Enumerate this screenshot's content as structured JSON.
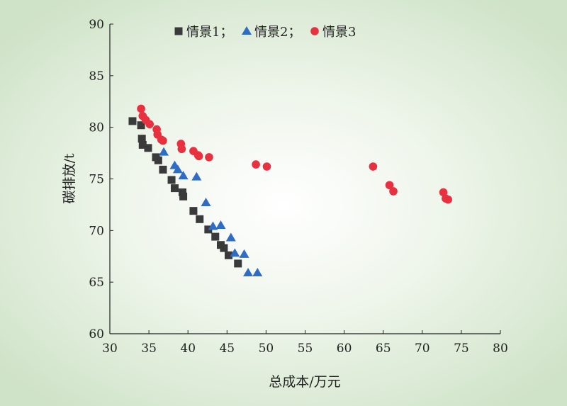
{
  "chart_data": {
    "type": "scatter",
    "title": "",
    "xlabel": "总成本/万元",
    "ylabel": "碳排放/t",
    "xlim": [
      30,
      80
    ],
    "ylim": [
      60,
      90
    ],
    "xticks": [
      30,
      35,
      40,
      45,
      50,
      55,
      60,
      65,
      70,
      75,
      80
    ],
    "yticks": [
      60,
      65,
      70,
      75,
      80,
      85,
      90
    ],
    "grid": false,
    "legend_position": "top",
    "legend_separator": "；",
    "series": [
      {
        "name": "情景1",
        "marker": "square",
        "color": "#3a3a3a",
        "points": [
          [
            32.9,
            80.6
          ],
          [
            34.0,
            80.2
          ],
          [
            34.1,
            78.9
          ],
          [
            34.2,
            78.3
          ],
          [
            34.9,
            78.0
          ],
          [
            35.9,
            77.1
          ],
          [
            36.2,
            76.8
          ],
          [
            36.8,
            75.9
          ],
          [
            37.9,
            74.9
          ],
          [
            38.3,
            74.1
          ],
          [
            39.3,
            73.7
          ],
          [
            39.4,
            73.3
          ],
          [
            40.7,
            71.9
          ],
          [
            41.5,
            71.1
          ],
          [
            42.6,
            70.1
          ],
          [
            43.5,
            69.4
          ],
          [
            44.2,
            68.6
          ],
          [
            44.6,
            68.3
          ],
          [
            45.2,
            67.6
          ],
          [
            46.4,
            66.8
          ]
        ]
      },
      {
        "name": "情景2",
        "marker": "triangle",
        "color": "#2f6cc4",
        "points": [
          [
            36.9,
            77.6
          ],
          [
            38.3,
            76.3
          ],
          [
            38.7,
            75.9
          ],
          [
            39.4,
            75.3
          ],
          [
            41.1,
            75.2
          ],
          [
            42.3,
            72.7
          ],
          [
            43.2,
            70.4
          ],
          [
            44.2,
            70.5
          ],
          [
            45.5,
            69.3
          ],
          [
            46.0,
            67.8
          ],
          [
            47.2,
            67.7
          ],
          [
            47.7,
            65.9
          ],
          [
            48.9,
            65.9
          ]
        ]
      },
      {
        "name": "情景3",
        "marker": "circle",
        "color": "#e8303f",
        "points": [
          [
            34.0,
            81.8
          ],
          [
            34.2,
            81.1
          ],
          [
            34.6,
            80.7
          ],
          [
            35.1,
            80.3
          ],
          [
            36.0,
            79.8
          ],
          [
            36.1,
            79.3
          ],
          [
            36.6,
            78.8
          ],
          [
            36.8,
            78.7
          ],
          [
            39.1,
            78.4
          ],
          [
            39.2,
            77.9
          ],
          [
            40.7,
            77.7
          ],
          [
            41.3,
            77.3
          ],
          [
            41.4,
            77.2
          ],
          [
            42.7,
            77.1
          ],
          [
            48.7,
            76.4
          ],
          [
            50.1,
            76.2
          ],
          [
            63.7,
            76.2
          ],
          [
            65.8,
            74.4
          ],
          [
            66.3,
            73.8
          ],
          [
            72.7,
            73.7
          ],
          [
            73.0,
            73.1
          ],
          [
            73.3,
            73.0
          ]
        ]
      }
    ]
  }
}
